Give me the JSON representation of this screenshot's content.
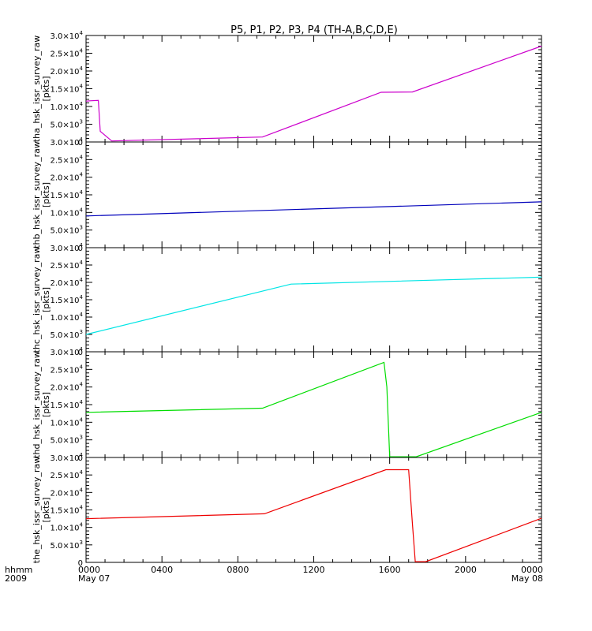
{
  "chart_data": {
    "type": "line",
    "title": "P5, P1, P2, P3, P4 (TH-A,B,C,D,E)",
    "x_tick_labels": [
      "0000",
      "0400",
      "0800",
      "1200",
      "1600",
      "2000",
      "0000"
    ],
    "x_tick_dates": [
      "May 07",
      "",
      "",
      "",
      "",
      "",
      "May 08"
    ],
    "x_corner_label": {
      "top": "hhmm",
      "bottom": "2009"
    },
    "xlim_hours": [
      0,
      24
    ],
    "ylim": [
      0,
      30000
    ],
    "y_ticks": [
      {
        "v": 0,
        "m": "0",
        "e": ""
      },
      {
        "v": 5000,
        "m": "5.0×10",
        "e": "3"
      },
      {
        "v": 10000,
        "m": "1.0×10",
        "e": "4"
      },
      {
        "v": 15000,
        "m": "1.5×10",
        "e": "4"
      },
      {
        "v": 20000,
        "m": "2.0×10",
        "e": "4"
      },
      {
        "v": 25000,
        "m": "2.5×10",
        "e": "4"
      },
      {
        "v": 30000,
        "m": "3.0×10",
        "e": "4"
      }
    ],
    "grid": false,
    "panels": [
      {
        "ylabel": "tha_hsk_issr_survey_raw",
        "unit": "[pkts]",
        "color": "#cc00cc",
        "points": [
          [
            0,
            11500
          ],
          [
            0.2,
            11600
          ],
          [
            0.65,
            11700
          ],
          [
            0.75,
            3000
          ],
          [
            1.35,
            300
          ],
          [
            9.3,
            1400
          ],
          [
            15.55,
            14000
          ],
          [
            17.2,
            14100
          ],
          [
            24,
            27000
          ]
        ]
      },
      {
        "ylabel": "thb_hsk_issr_survey_raw",
        "unit": "[pkts]",
        "color": "#0000bb",
        "points": [
          [
            0,
            9000
          ],
          [
            24,
            13000
          ]
        ]
      },
      {
        "ylabel": "thc_hsk_issr_survey_raw",
        "unit": "[pkts]",
        "color": "#00e5e5",
        "points": [
          [
            0,
            5000
          ],
          [
            10.8,
            19500
          ],
          [
            24,
            21500
          ]
        ]
      },
      {
        "ylabel": "thd_hsk_issr_survey_raw",
        "unit": "[pkts]",
        "color": "#00dd00",
        "points": [
          [
            0,
            12800
          ],
          [
            9.3,
            14000
          ],
          [
            15.7,
            27000
          ],
          [
            15.85,
            20000
          ],
          [
            16.0,
            200
          ],
          [
            17.4,
            200
          ],
          [
            24,
            12800
          ]
        ]
      },
      {
        "ylabel": "the_hsk_issr_survey_raw",
        "unit": "[pkts]",
        "color": "#ee0000",
        "points": [
          [
            0,
            12500
          ],
          [
            9.4,
            13900
          ],
          [
            15.8,
            26500
          ],
          [
            17.0,
            26500
          ],
          [
            17.2,
            11000
          ],
          [
            17.35,
            200
          ],
          [
            17.9,
            200
          ],
          [
            24,
            12600
          ]
        ]
      }
    ]
  }
}
